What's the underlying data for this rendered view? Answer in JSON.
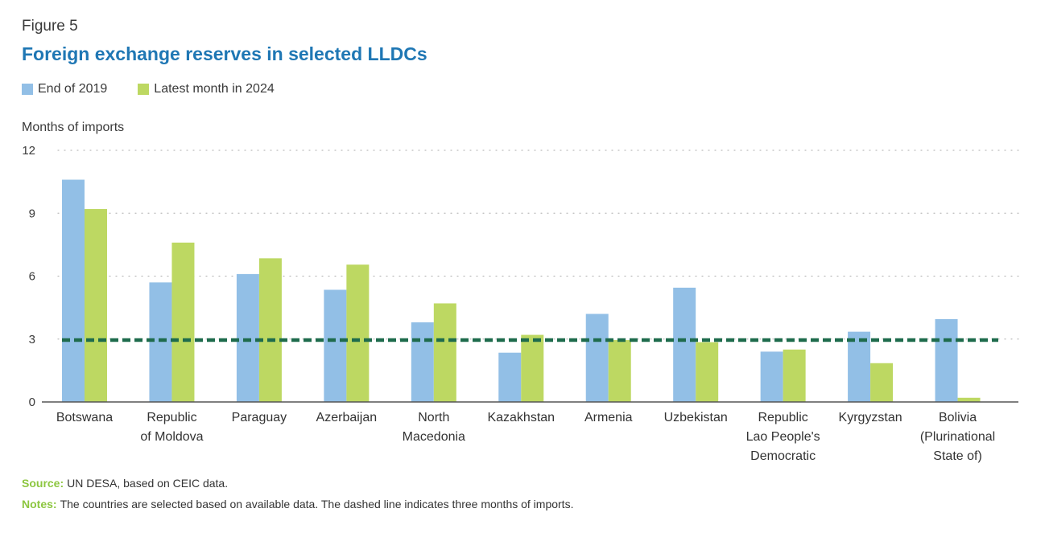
{
  "figure_label": "Figure 5",
  "title": "Foreign exchange reserves in selected LLDCs",
  "colors": {
    "title": "#1f77b4",
    "series_2019": "#92bfe6",
    "series_2024": "#bdd862",
    "threshold_line": "#1e6b4c",
    "footnote_label": "#8cc63f",
    "axis": "#555555",
    "grid": "#bbbbbb"
  },
  "source": {
    "label": "Source:",
    "text": "UN DESA, based on CEIC data."
  },
  "notes": {
    "label": "Notes:",
    "text": "The countries are selected based on available data. The dashed line indicates three months of imports."
  },
  "chart_data": {
    "type": "bar",
    "ylabel": "Months of imports",
    "xlabel": "",
    "ylim": [
      0,
      12
    ],
    "yticks": [
      0,
      3,
      6,
      9,
      12
    ],
    "grid": true,
    "legend_position": "top-left",
    "categories": [
      [
        "Botswana"
      ],
      [
        "Republic",
        "of Moldova"
      ],
      [
        "Paraguay"
      ],
      [
        "Azerbaijan"
      ],
      [
        "North",
        "Macedonia"
      ],
      [
        "Kazakhstan"
      ],
      [
        "Armenia"
      ],
      [
        "Uzbekistan"
      ],
      [
        "Republic",
        "Lao People's",
        "Democratic"
      ],
      [
        "Kyrgyzstan"
      ],
      [
        "Bolivia",
        "(Plurinational",
        "State of)"
      ]
    ],
    "series": [
      {
        "name": "End of 2019",
        "values": [
          10.6,
          5.7,
          6.1,
          5.35,
          3.8,
          2.35,
          4.2,
          5.45,
          2.4,
          3.35,
          3.95
        ]
      },
      {
        "name": "Latest month in 2024",
        "values": [
          9.2,
          7.6,
          6.85,
          6.55,
          4.7,
          3.2,
          2.95,
          2.85,
          2.5,
          1.85,
          0.2
        ]
      }
    ],
    "reference_line": {
      "value": 2.95,
      "style": "dashed"
    }
  }
}
